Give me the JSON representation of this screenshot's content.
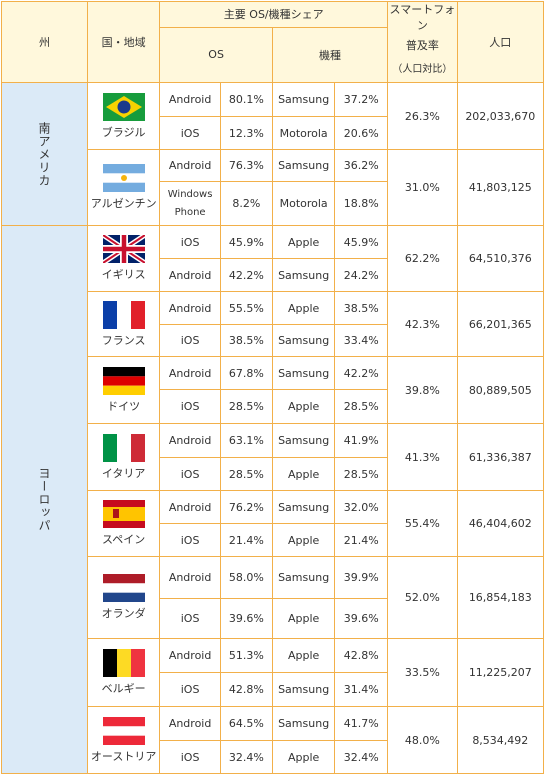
{
  "headers": {
    "region": "州",
    "country": "国・地域",
    "share": "主要 OS/機種シェア",
    "os": "OS",
    "model": "機種",
    "penetration": [
      "スマートフォン",
      "普及率",
      "（人口対比）"
    ],
    "population": "人口"
  },
  "groups": [
    {
      "name": "南アメリカ",
      "countries": [
        {
          "name": "ブラジル",
          "os": [
            [
              "Android",
              "80.1%"
            ],
            [
              "iOS",
              "12.3%"
            ]
          ],
          "models": [
            [
              "Samsung",
              "37.2%"
            ],
            [
              "Motorola",
              "20.6%"
            ]
          ],
          "penetration": "26.3%",
          "population": "202,033,670"
        },
        {
          "name": "アルゼンチン",
          "os": [
            [
              "Android",
              "76.3%"
            ],
            [
              "Windows Phone",
              "8.2%"
            ]
          ],
          "models": [
            [
              "Samsung",
              "36.2%"
            ],
            [
              "Motorola",
              "18.8%"
            ]
          ],
          "penetration": "31.0%",
          "population": "41,803,125"
        }
      ]
    },
    {
      "name": "ヨーロッパ",
      "countries": [
        {
          "name": "イギリス",
          "os": [
            [
              "iOS",
              "45.9%"
            ],
            [
              "Android",
              "42.2%"
            ]
          ],
          "models": [
            [
              "Apple",
              "45.9%"
            ],
            [
              "Samsung",
              "24.2%"
            ]
          ],
          "penetration": "62.2%",
          "population": "64,510,376"
        },
        {
          "name": "フランス",
          "os": [
            [
              "Android",
              "55.5%"
            ],
            [
              "iOS",
              "38.5%"
            ]
          ],
          "models": [
            [
              "Apple",
              "38.5%"
            ],
            [
              "Samsung",
              "33.4%"
            ]
          ],
          "penetration": "42.3%",
          "population": "66,201,365"
        },
        {
          "name": "ドイツ",
          "os": [
            [
              "Android",
              "67.8%"
            ],
            [
              "iOS",
              "28.5%"
            ]
          ],
          "models": [
            [
              "Samsung",
              "42.2%"
            ],
            [
              "Apple",
              "28.5%"
            ]
          ],
          "penetration": "39.8%",
          "population": "80,889,505"
        },
        {
          "name": "イタリア",
          "os": [
            [
              "Android",
              "63.1%"
            ],
            [
              "iOS",
              "28.5%"
            ]
          ],
          "models": [
            [
              "Samsung",
              "41.9%"
            ],
            [
              "Apple",
              "28.5%"
            ]
          ],
          "penetration": "41.3%",
          "population": "61,336,387"
        },
        {
          "name": "スペイン",
          "os": [
            [
              "Android",
              "76.2%"
            ],
            [
              "iOS",
              "21.4%"
            ]
          ],
          "models": [
            [
              "Samsung",
              "32.0%"
            ],
            [
              "Apple",
              "21.4%"
            ]
          ],
          "penetration": "55.4%",
          "population": "46,404,602"
        },
        {
          "name": "オランダ",
          "os": [
            [
              "Android",
              "58.0%"
            ],
            [
              "iOS",
              "39.6%"
            ]
          ],
          "models": [
            [
              "Samsung",
              "39.9%"
            ],
            [
              "Apple",
              "39.6%"
            ]
          ],
          "penetration": "52.0%",
          "population": "16,854,183"
        },
        {
          "name": "ベルギー",
          "os": [
            [
              "Android",
              "51.3%"
            ],
            [
              "iOS",
              "42.8%"
            ]
          ],
          "models": [
            [
              "Apple",
              "42.8%"
            ],
            [
              "Samsung",
              "31.4%"
            ]
          ],
          "penetration": "33.5%",
          "population": "11,225,207"
        },
        {
          "name": "オーストリア",
          "os": [
            [
              "Android",
              "64.5%"
            ],
            [
              "iOS",
              "32.4%"
            ]
          ],
          "models": [
            [
              "Samsung",
              "41.7%"
            ],
            [
              "Apple",
              "32.4%"
            ]
          ],
          "penetration": "48.0%",
          "population": "8,534,492"
        }
      ]
    }
  ]
}
